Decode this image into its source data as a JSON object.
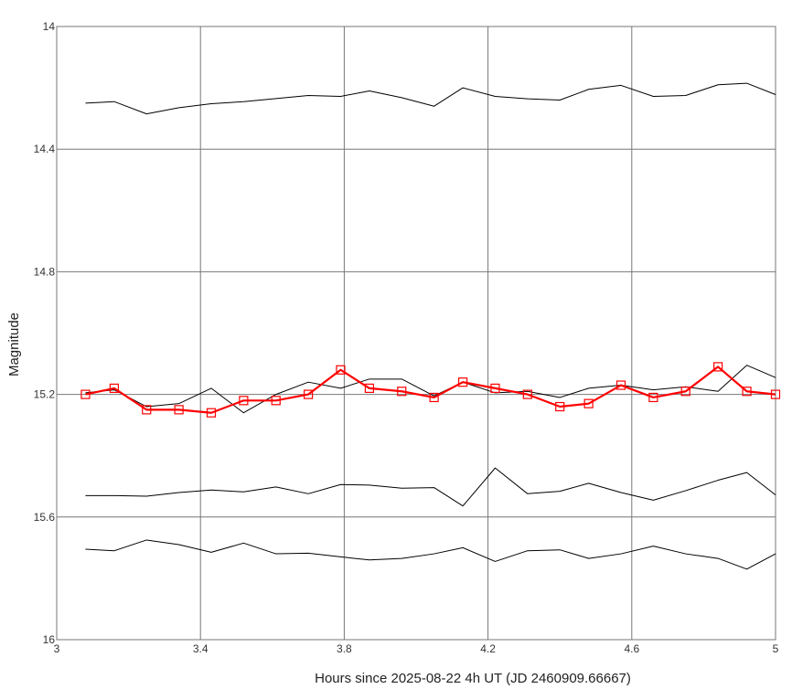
{
  "chart_data": {
    "type": "line",
    "xlabel": "Hours since 2025-08-22 4h UT (JD 2460909.66667)",
    "ylabel": "Magnitude",
    "xlim": [
      3,
      5
    ],
    "ylim": [
      14,
      16
    ],
    "y_inverted": true,
    "grid": true,
    "x_ticks": [
      "3",
      "3.4",
      "3.8",
      "4.2",
      "4.6",
      "5"
    ],
    "y_ticks": [
      "14",
      "14.4",
      "14.8",
      "15.2",
      "15.6",
      "16"
    ],
    "x": [
      3.08,
      3.16,
      3.25,
      3.34,
      3.43,
      3.52,
      3.61,
      3.7,
      3.79,
      3.87,
      3.96,
      4.05,
      4.13,
      4.22,
      4.31,
      4.4,
      4.48,
      4.57,
      4.66,
      4.75,
      4.84,
      4.92,
      5.0
    ],
    "series": [
      {
        "color": "#ff0000",
        "marker": "square",
        "values": [
          15.2,
          15.18,
          15.25,
          15.25,
          15.26,
          15.22,
          15.22,
          15.2,
          15.12,
          15.18,
          15.19,
          15.21,
          15.16,
          15.18,
          15.2,
          15.24,
          15.23,
          15.17,
          15.21,
          15.19,
          15.11,
          15.19,
          15.2
        ]
      },
      {
        "color": "#000000",
        "values": [
          14.25,
          14.245,
          14.285,
          14.265,
          14.252,
          14.245,
          14.235,
          14.225,
          14.228,
          14.21,
          14.232,
          14.26,
          14.2,
          14.228,
          14.236,
          14.24,
          14.205,
          14.192,
          14.228,
          14.225,
          14.19,
          14.185,
          14.222
        ]
      },
      {
        "color": "#000000",
        "values": [
          15.195,
          15.185,
          15.24,
          15.23,
          15.18,
          15.26,
          15.2,
          15.16,
          15.18,
          15.15,
          15.15,
          15.205,
          15.16,
          15.195,
          15.19,
          15.21,
          15.18,
          15.17,
          15.185,
          15.175,
          15.19,
          15.105,
          15.145
        ]
      },
      {
        "color": "#000000",
        "values": [
          15.53,
          15.53,
          15.532,
          15.52,
          15.512,
          15.518,
          15.502,
          15.524,
          15.494,
          15.496,
          15.506,
          15.504,
          15.564,
          15.44,
          15.524,
          15.516,
          15.49,
          15.52,
          15.545,
          15.514,
          15.48,
          15.455,
          15.528
        ]
      },
      {
        "color": "#000000",
        "values": [
          15.705,
          15.71,
          15.675,
          15.69,
          15.715,
          15.685,
          15.72,
          15.718,
          15.73,
          15.74,
          15.735,
          15.72,
          15.7,
          15.745,
          15.71,
          15.707,
          15.735,
          15.72,
          15.695,
          15.72,
          15.735,
          15.77,
          15.72
        ]
      }
    ]
  }
}
